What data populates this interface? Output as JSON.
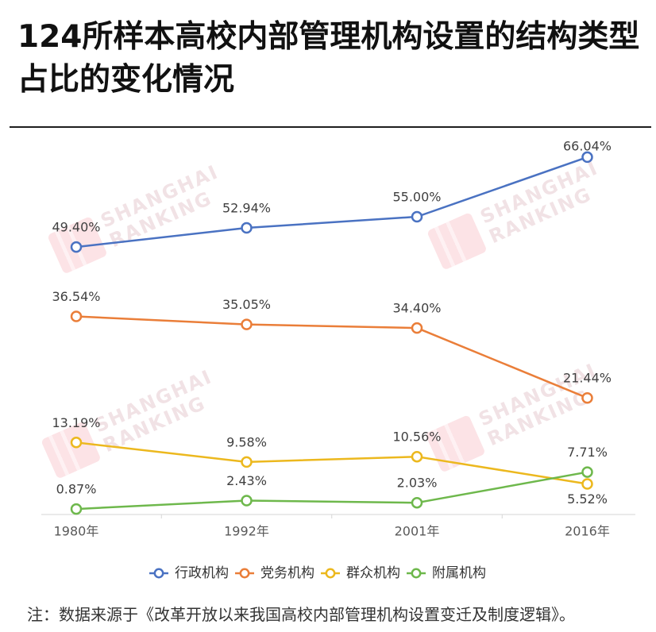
{
  "chart_data": {
    "type": "line",
    "title": [
      "124所样本高校内部管理机构设置的结构类型",
      "占比的变化情况"
    ],
    "categories": [
      "1980年",
      "1992年",
      "2001年",
      "2016年"
    ],
    "series": [
      {
        "name": "行政机构",
        "color": "#4a72c2",
        "values": [
          49.4,
          52.94,
          55.0,
          66.04
        ],
        "labels": [
          "49.40%",
          "52.94%",
          "55.00%",
          "66.04%"
        ]
      },
      {
        "name": "党务机构",
        "color": "#ea7e39",
        "values": [
          36.54,
          35.05,
          34.4,
          21.44
        ],
        "labels": [
          "36.54%",
          "35.05%",
          "34.40%",
          "21.44%"
        ]
      },
      {
        "name": "群众机构",
        "color": "#ecb81e",
        "values": [
          13.19,
          9.58,
          10.56,
          5.52
        ],
        "labels": [
          "13.19%",
          "9.58%",
          "10.56%",
          "5.52%"
        ]
      },
      {
        "name": "附属机构",
        "color": "#6eb84c",
        "values": [
          0.87,
          2.43,
          2.03,
          7.71
        ],
        "labels": [
          "0.87%",
          "2.43%",
          "2.03%",
          "7.71%"
        ]
      }
    ],
    "ylim": [
      0,
      70
    ],
    "grid": false,
    "legend": "bottom"
  },
  "note": "注：数据来源于《改革开放以来我国高校内部管理机构设置变迁及制度逻辑》。",
  "watermark": {
    "line1": "SHANGHAI",
    "line2": "RANKING"
  }
}
